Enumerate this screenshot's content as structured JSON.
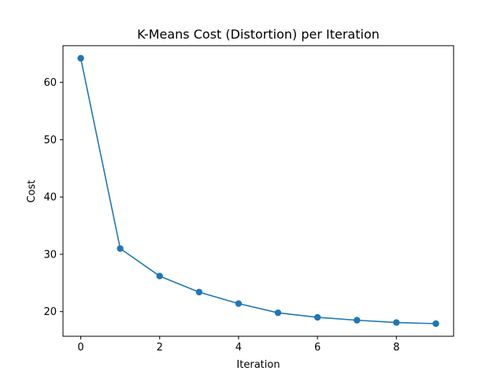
{
  "chart_data": {
    "type": "line",
    "title": "K-Means Cost (Distortion) per Iteration",
    "xlabel": "Iteration",
    "ylabel": "Cost",
    "x": [
      0,
      1,
      2,
      3,
      4,
      5,
      6,
      7,
      8,
      9
    ],
    "series": [
      {
        "name": "Cost",
        "values": [
          64.2,
          31.0,
          26.2,
          23.4,
          21.4,
          19.8,
          19.0,
          18.5,
          18.1,
          17.9
        ],
        "color": "#1f77b4",
        "marker": "circle"
      }
    ],
    "xlim": [
      -0.45,
      9.45
    ],
    "ylim": [
      15.7,
      66.4
    ],
    "xticks": [
      0,
      2,
      4,
      6,
      8
    ],
    "xtick_labels": [
      "0",
      "2",
      "4",
      "6",
      "8"
    ],
    "yticks": [
      20,
      30,
      40,
      50,
      60
    ],
    "ytick_labels": [
      "20",
      "30",
      "40",
      "50",
      "60"
    ],
    "grid": false,
    "legend": false
  }
}
